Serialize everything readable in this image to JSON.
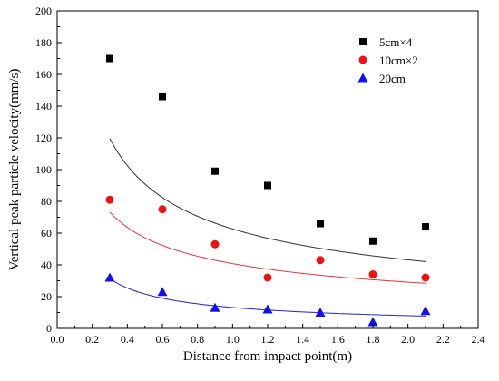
{
  "chart_data": {
    "type": "scatter",
    "title": "",
    "xlabel": "Distance from impact point(m)",
    "ylabel": "Vertical peak particle velocity(mm/s)",
    "xlim": [
      0.0,
      2.4
    ],
    "ylim": [
      0,
      200
    ],
    "xticks": [
      "0.0",
      "0.2",
      "0.4",
      "0.6",
      "0.8",
      "1.0",
      "1.2",
      "1.4",
      "1.6",
      "1.8",
      "2.0",
      "2.2",
      "2.4"
    ],
    "yticks": [
      "0",
      "20",
      "40",
      "60",
      "80",
      "100",
      "120",
      "140",
      "160",
      "180",
      "200"
    ],
    "grid": false,
    "legend_position": "top-right",
    "series": [
      {
        "name": "5cm×4",
        "marker": "square",
        "color": "#000000",
        "fit_color": "#333333",
        "x": [
          0.3,
          0.6,
          0.9,
          1.2,
          1.5,
          1.8,
          2.1
        ],
        "y": [
          170,
          146,
          99,
          90,
          66,
          55,
          64
        ],
        "fit": {
          "a": 62.65,
          "b": -0.537
        }
      },
      {
        "name": "10cm×2",
        "marker": "circle",
        "color": "#ee1111",
        "fit_color": "#ee3333",
        "x": [
          0.3,
          0.6,
          0.9,
          1.2,
          1.5,
          1.8,
          2.1
        ],
        "y": [
          81,
          75,
          53,
          32,
          43,
          34,
          32
        ],
        "fit": {
          "a": 40.77,
          "b": -0.486
        }
      },
      {
        "name": "20cm",
        "marker": "triangle",
        "color": "#1111ee",
        "fit_color": "#2222cc",
        "x": [
          0.3,
          0.6,
          0.9,
          1.2,
          1.5,
          1.8,
          2.1
        ],
        "y": [
          32,
          23,
          13,
          12,
          10,
          4,
          11
        ],
        "fit": {
          "a": 13.18,
          "b": -0.716
        }
      }
    ]
  }
}
